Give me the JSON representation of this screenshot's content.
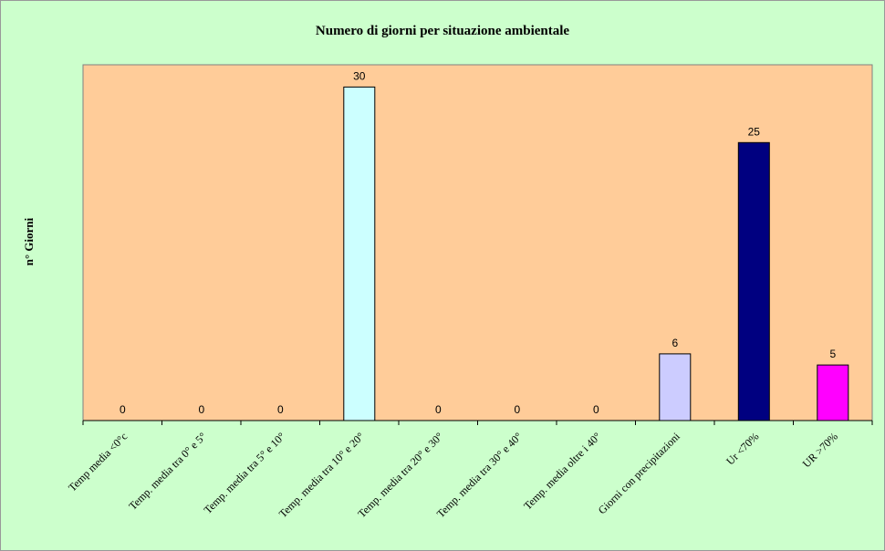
{
  "chart_data": {
    "type": "bar",
    "title": "Numero di giorni per situazione ambientale",
    "xlabel": "",
    "ylabel": "n° Giorni",
    "ylim": [
      0,
      32
    ],
    "grid": false,
    "legend": "none",
    "categories": [
      "Temp media <0°c",
      "Temp. media tra 0° e 5°",
      "Temp. media tra 5° e 10°",
      "Temp. media tra 10° e 20°",
      "Temp. media tra 20° e 30°",
      "Temp. media tra 30° e 40°",
      "Temp. media oltre i 40°",
      "Giorni con precipitazioni",
      "Ur <70%",
      "UR >70%"
    ],
    "values": [
      0,
      0,
      0,
      30,
      0,
      0,
      0,
      6,
      25,
      5
    ],
    "data_labels": [
      "0",
      "0",
      "0",
      "30",
      "0",
      "0",
      "0",
      "6",
      "25",
      "5"
    ],
    "bar_colors": [
      "#ccffff",
      "#ccffff",
      "#ccffff",
      "#ccffff",
      "#ccffff",
      "#ccffff",
      "#ccffff",
      "#ccccff",
      "#000080",
      "#ff00ff"
    ],
    "colors": {
      "background": "#ccffcc",
      "plot_area": "#ffcc99",
      "axis": "#000000"
    }
  }
}
